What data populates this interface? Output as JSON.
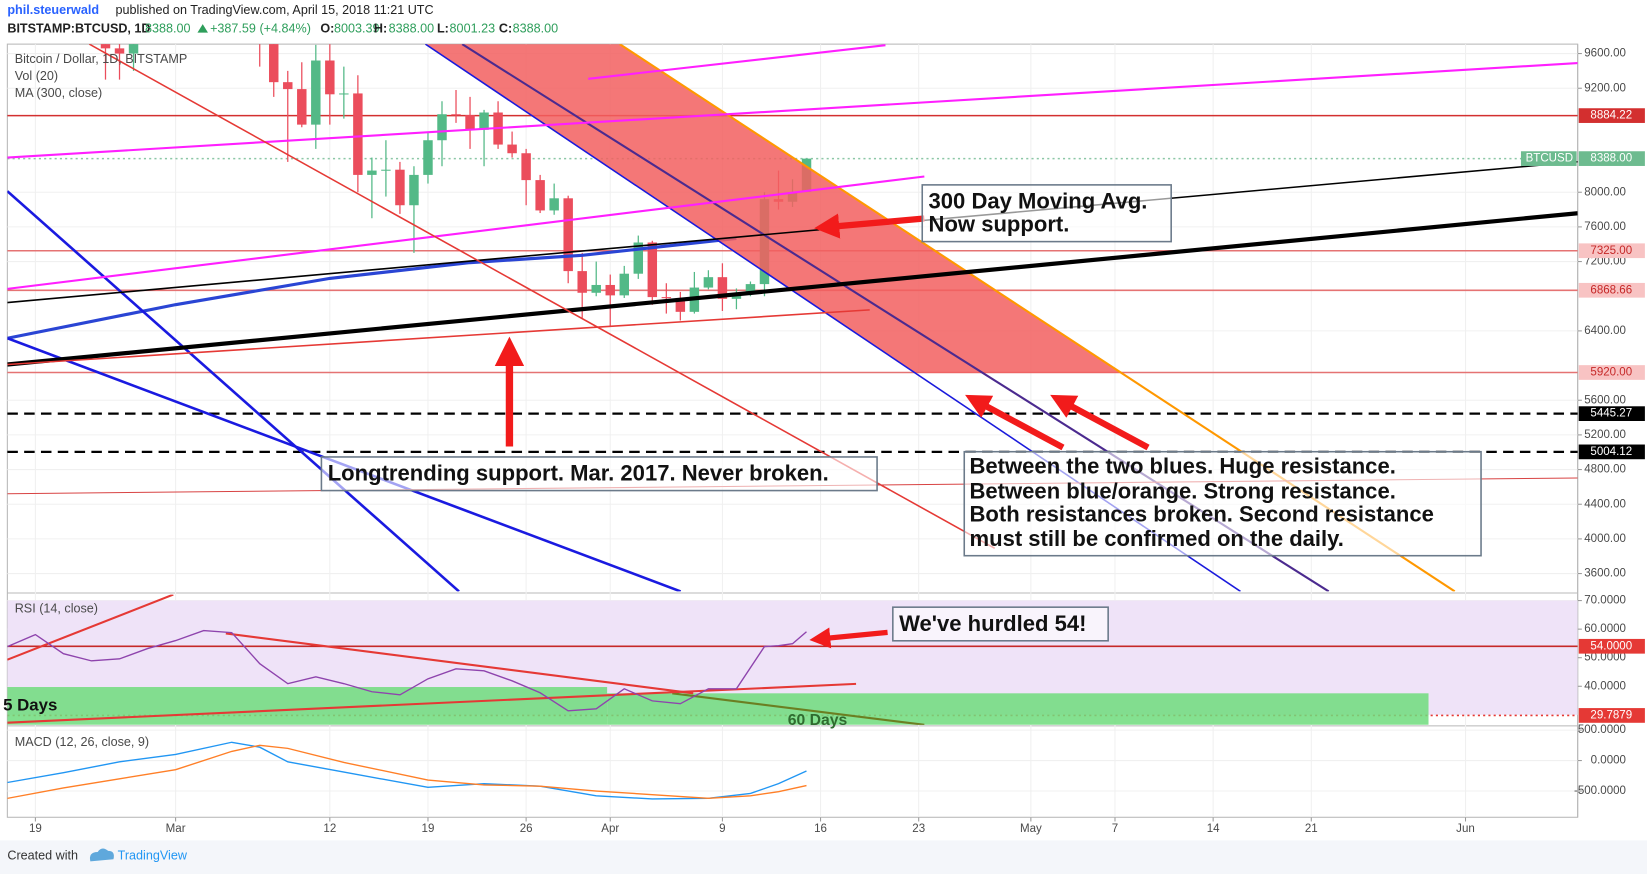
{
  "header": {
    "author": "phil.steuerwald",
    "published": "published on TradingView.com, April 15, 2018 11:21 UTC",
    "symbol": "BITSTAMP:BTCUSD, 1D",
    "last": "8388.00",
    "change": "+387.59 (+4.84%)",
    "ohlc": [
      {
        "key": "O:",
        "value": "8003.39"
      },
      {
        "key": "H:",
        "value": "8388.00"
      },
      {
        "key": "L:",
        "value": "8001.23"
      },
      {
        "key": "C:",
        "value": "8388.00"
      }
    ]
  },
  "chart_data": [
    {
      "type": "candlestick",
      "legend": [
        "Bitcoin / Dollar, 1D, BITSTAMP",
        "Vol (20)"
      ],
      "x": [
        "2018-02-24",
        "2018-02-25",
        "2018-02-26",
        "2018-03-07",
        "2018-03-08",
        "2018-03-09",
        "2018-03-10",
        "2018-03-11",
        "2018-03-12",
        "2018-03-13",
        "2018-03-14",
        "2018-03-15",
        "2018-03-16",
        "2018-03-17",
        "2018-03-18",
        "2018-03-19",
        "2018-03-20",
        "2018-03-21",
        "2018-03-22",
        "2018-03-23",
        "2018-03-24",
        "2018-03-25",
        "2018-03-26",
        "2018-03-27",
        "2018-03-28",
        "2018-03-29",
        "2018-03-30",
        "2018-03-31",
        "2018-04-01",
        "2018-04-02",
        "2018-04-03",
        "2018-04-04",
        "2018-04-05",
        "2018-04-06",
        "2018-04-07",
        "2018-04-08",
        "2018-04-09",
        "2018-04-10",
        "2018-04-11",
        "2018-04-12",
        "2018-04-13",
        "2018-04-14",
        "2018-04-15"
      ],
      "open": [
        10150,
        9660,
        9600,
        10700,
        9900,
        9270,
        9190,
        8780,
        9520,
        9130,
        9140,
        8200,
        8250,
        8260,
        7850,
        8200,
        8600,
        8900,
        8890,
        8720,
        8920,
        8550,
        8450,
        8140,
        7790,
        7930,
        7090,
        6840,
        6930,
        6810,
        7060,
        7420,
        6790,
        6780,
        6620,
        6900,
        7020,
        6770,
        6830,
        6940,
        7920,
        7890,
        8003.39
      ],
      "high": [
        10500,
        9850,
        10450,
        10900,
        10000,
        9400,
        9500,
        9700,
        9880,
        9450,
        9350,
        8400,
        8600,
        8350,
        8300,
        8700,
        9050,
        9180,
        9100,
        8950,
        9050,
        8700,
        8500,
        8200,
        8100,
        7960,
        7300,
        7200,
        7050,
        7150,
        7500,
        7440,
        6950,
        6850,
        7080,
        7100,
        7180,
        6890,
        6970,
        8000,
        8250,
        8150,
        8388
      ],
      "low": [
        9300,
        9300,
        9400,
        9450,
        9100,
        8350,
        8750,
        8500,
        8780,
        8850,
        8000,
        7700,
        7950,
        7750,
        7300,
        8100,
        8300,
        8800,
        8500,
        8300,
        8500,
        8400,
        7850,
        7760,
        7740,
        6950,
        6550,
        6800,
        6450,
        6780,
        7000,
        6700,
        6600,
        6520,
        6600,
        6880,
        6630,
        6650,
        6800,
        6800,
        7800,
        7830,
        8001.23
      ],
      "close": [
        9660,
        9600,
        10300,
        9900,
        9270,
        9190,
        8780,
        9520,
        9130,
        9140,
        8200,
        8250,
        8260,
        7850,
        8200,
        8600,
        8900,
        8890,
        8720,
        8920,
        8550,
        8450,
        8140,
        7790,
        7930,
        7090,
        6840,
        6930,
        6810,
        7060,
        7420,
        6790,
        6780,
        6620,
        6900,
        7020,
        6770,
        6830,
        6940,
        7920,
        7890,
        8000.41,
        8388
      ],
      "up_color": "#53b987",
      "down_color": "#eb4d5c",
      "series": [
        {
          "name": "MA (300, close)",
          "color": "#2a45d4",
          "x": [
            "2018-02-17",
            "2018-03-01",
            "2018-03-12",
            "2018-03-22",
            "2018-03-30",
            "2018-04-10"
          ],
          "values": [
            6315,
            6703,
            7006,
            7188,
            7273,
            7467
          ]
        }
      ],
      "xlim": [
        "2018-02-17",
        "2018-06-09"
      ],
      "xticks": [
        {
          "value": "2018-02-19",
          "label": "19"
        },
        {
          "value": "2018-03-01",
          "label": "Mar"
        },
        {
          "value": "2018-03-12",
          "label": "12"
        },
        {
          "value": "2018-03-19",
          "label": "19"
        },
        {
          "value": "2018-03-26",
          "label": "26"
        },
        {
          "value": "2018-04-01",
          "label": "Apr"
        },
        {
          "value": "2018-04-09",
          "label": "9"
        },
        {
          "value": "2018-04-16",
          "label": "16"
        },
        {
          "value": "2018-04-23",
          "label": "23"
        },
        {
          "value": "2018-05-01",
          "label": "May"
        },
        {
          "value": "2018-05-07",
          "label": "7"
        },
        {
          "value": "2018-05-14",
          "label": "14"
        },
        {
          "value": "2018-05-21",
          "label": "21"
        },
        {
          "value": "2018-06-01",
          "label": "Jun"
        }
      ],
      "ylim": [
        3394,
        9709
      ],
      "yticks": [
        {
          "value": 9600,
          "label": "9600.00"
        },
        {
          "value": 9200,
          "label": "9200.00"
        },
        {
          "value": 8000,
          "label": "8000.00"
        },
        {
          "value": 7600,
          "label": "7600.00"
        },
        {
          "value": 7200,
          "label": "7200.00"
        },
        {
          "value": 6400,
          "label": "6400.00"
        },
        {
          "value": 5600,
          "label": "5600.00"
        },
        {
          "value": 5200,
          "label": "5200.00"
        },
        {
          "value": 4800,
          "label": "4800.00"
        },
        {
          "value": 4400,
          "label": "4400.00"
        },
        {
          "value": 4000,
          "label": "4000.00"
        },
        {
          "value": 3600,
          "label": "3600.00"
        }
      ],
      "grid": true,
      "price_tags": [
        {
          "value": 8884.22,
          "label": "8884.22",
          "color": "#d32f2f",
          "text_color": "#ffffff",
          "line_color": "#d32f2f",
          "style": "solid"
        },
        {
          "value": 8388,
          "label": "8388.00",
          "name": "BTCUSD",
          "color": "#6dbb8f",
          "text_color": "#ffffff",
          "line_color": "#8cc7a6",
          "style": "dotted"
        },
        {
          "value": 7325,
          "label": "7325.00",
          "color": "#f8c3c3",
          "text_color": "#c62828",
          "line_color": "#e57373",
          "style": "solid"
        },
        {
          "value": 6868.66,
          "label": "6868.66",
          "color": "#f8c3c3",
          "text_color": "#c62828",
          "line_color": "#e57373",
          "style": "solid"
        },
        {
          "value": 5920,
          "label": "5920.00",
          "color": "#f8c3c3",
          "text_color": "#c62828",
          "line_color": "#e57373",
          "style": "solid"
        },
        {
          "value": 5445.27,
          "label": "5445.27",
          "color": "#000000",
          "text_color": "#ffffff",
          "line_color": "#000000",
          "style": "dashed"
        },
        {
          "value": 5004.12,
          "label": "5004.12",
          "color": "#000000",
          "text_color": "#ffffff",
          "line_color": "#000000",
          "style": "dashed"
        }
      ],
      "annotations": [
        {
          "lines": [
            "300 Day Moving Avg.",
            "Now support."
          ]
        },
        {
          "lines": [
            "Longtrending support. Mar. 2017. Never broken."
          ]
        },
        {
          "lines": [
            "Between the two blues. Huge resistance.",
            "Between blue/orange. Strong resistance.",
            "Both resistances broken. Second resistance",
            "must still be confirmed on the daily."
          ]
        }
      ]
    },
    {
      "type": "line",
      "series": [
        {
          "name": "RSI (14, close)",
          "color": "#8e44ad",
          "x": [
            "2018-02-17",
            "2018-02-19",
            "2018-02-21",
            "2018-02-23",
            "2018-02-25",
            "2018-02-27",
            "2018-03-01",
            "2018-03-03",
            "2018-03-05",
            "2018-03-07",
            "2018-03-09",
            "2018-03-11",
            "2018-03-13",
            "2018-03-15",
            "2018-03-17",
            "2018-03-19",
            "2018-03-21",
            "2018-03-23",
            "2018-03-25",
            "2018-03-27",
            "2018-03-29",
            "2018-03-31",
            "2018-04-02",
            "2018-04-04",
            "2018-04-06",
            "2018-04-08",
            "2018-04-10",
            "2018-04-12",
            "2018-04-13",
            "2018-04-14",
            "2018-04-15"
          ],
          "values": [
            53.9,
            58.1,
            51.4,
            48.9,
            49.6,
            53.2,
            56,
            59.5,
            58.8,
            47.9,
            40.9,
            43.3,
            40.9,
            38.1,
            37,
            42.6,
            46.1,
            45.4,
            41.9,
            37.7,
            31.4,
            32.1,
            39.1,
            34.9,
            33.9,
            39.1,
            39.1,
            53.9,
            54.2,
            54.9,
            59.1
          ]
        }
      ],
      "ylim": [
        26.5,
        72.1
      ],
      "yticks": [
        {
          "value": 70,
          "label": "70.0000"
        },
        {
          "value": 60,
          "label": "60.0000"
        },
        {
          "value": 50,
          "label": "50.0000"
        },
        {
          "value": 40,
          "label": "40.0000"
        }
      ],
      "band": [
        30,
        70
      ],
      "band_color": "#efe3f8",
      "price_tags": [
        {
          "value": 54,
          "label": "54.0000",
          "color": "#e53935",
          "text_color": "#ffffff",
          "line_color": "#c62828",
          "style": "solid"
        },
        {
          "value": 29.7879,
          "label": "29.7879",
          "color": "#e53935",
          "text_color": "#ffffff",
          "line_color": "#e53935",
          "style": "dotted"
        }
      ],
      "annotations": [
        {
          "lines": [
            "We've hurdled 54!"
          ]
        },
        {
          "lines": [
            "5 Days"
          ]
        },
        {
          "lines": [
            "60 Days"
          ]
        }
      ]
    },
    {
      "type": "line",
      "legend": "MACD (12, 26, close, 9)",
      "series": [
        {
          "color": "#2196f3",
          "x": [
            "2018-02-17",
            "2018-02-21",
            "2018-02-25",
            "2018-03-01",
            "2018-03-05",
            "2018-03-07",
            "2018-03-09",
            "2018-03-13",
            "2018-03-19",
            "2018-03-23",
            "2018-03-27",
            "2018-03-31",
            "2018-04-04",
            "2018-04-08",
            "2018-04-11",
            "2018-04-13",
            "2018-04-15"
          ],
          "values": [
            -360,
            -200,
            -20,
            100,
            300,
            220,
            -20,
            -190,
            -440,
            -380,
            -420,
            -580,
            -630,
            -620,
            -540,
            -380,
            -170
          ]
        },
        {
          "color": "#ff7f27",
          "x": [
            "2018-02-17",
            "2018-02-21",
            "2018-02-25",
            "2018-03-01",
            "2018-03-05",
            "2018-03-07",
            "2018-03-09",
            "2018-03-13",
            "2018-03-19",
            "2018-03-23",
            "2018-03-27",
            "2018-03-31",
            "2018-04-04",
            "2018-04-08",
            "2018-04-11",
            "2018-04-13",
            "2018-04-15"
          ],
          "values": [
            -620,
            -450,
            -300,
            -150,
            150,
            250,
            200,
            -30,
            -320,
            -400,
            -420,
            -500,
            -560,
            -620,
            -580,
            -510,
            -410
          ]
        }
      ],
      "ylim": [
        -931,
        552
      ],
      "yticks": [
        {
          "value": 500,
          "label": "500.0000"
        },
        {
          "value": 0,
          "label": "0.0000"
        },
        {
          "value": -500,
          "label": "-500.0000"
        }
      ]
    }
  ],
  "footer": {
    "created_with": "Created with",
    "brand": "TradingView"
  }
}
